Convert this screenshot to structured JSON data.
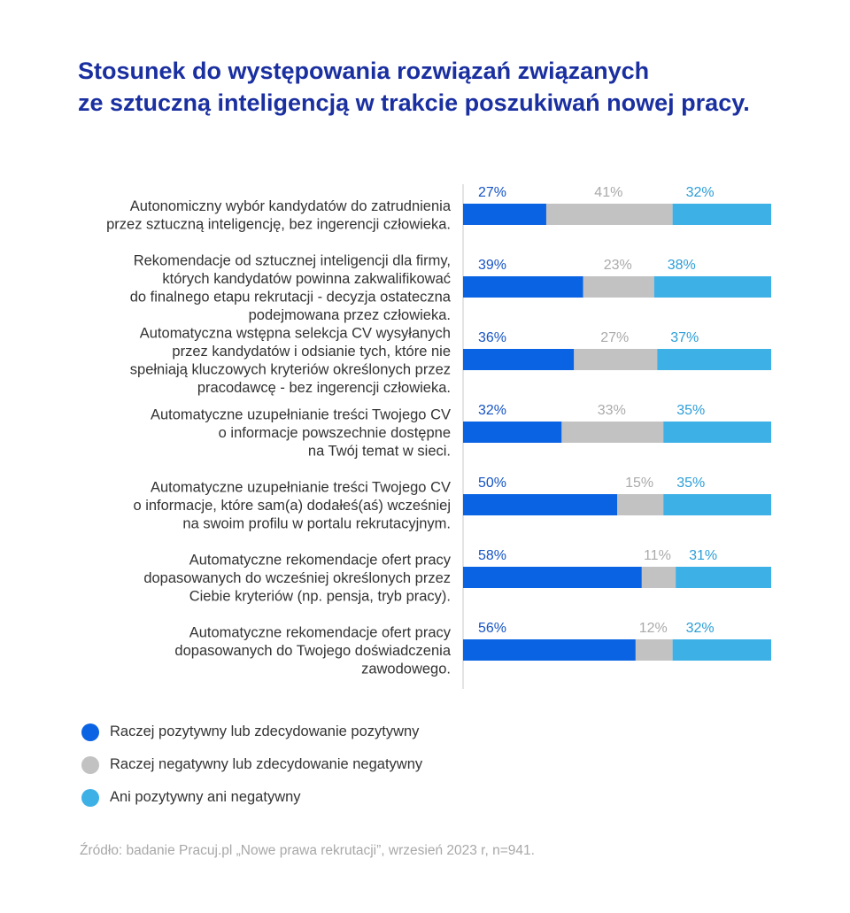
{
  "title": {
    "line1": "Stosunek do występowania rozwiązań związanych",
    "line2": "ze sztuczną inteligencją w trakcie poszukiwań nowej pracy."
  },
  "colors": {
    "positive": "#0a63e3",
    "negative": "#c2c2c2",
    "neutral": "#3db0e6",
    "title": "#1a2fa0",
    "positive_label": "#1553c4",
    "negative_label": "#aaaaaa",
    "neutral_label": "#2c9ed8"
  },
  "chart_data": {
    "type": "bar",
    "orientation": "horizontal",
    "stacked": true,
    "normalized_to": 100,
    "unit": "%",
    "categories": [
      [
        "Autonomiczny wybór kandydatów do zatrudnienia",
        "przez sztuczną inteligencję, bez ingerencji człowieka."
      ],
      [
        "Rekomendacje od sztucznej inteligencji dla firmy,",
        "których kandydatów powinna zakwalifikować",
        "do finalnego etapu rekrutacji - decyzja ostateczna",
        "podejmowana przez człowieka."
      ],
      [
        "Automatyczna wstępna selekcja CV wysyłanych",
        "przez kandydatów i odsianie tych, które nie",
        "spełniają kluczowych kryteriów określonych przez",
        "pracodawcę - bez ingerencji człowieka."
      ],
      [
        "Automatyczne uzupełnianie treści Twojego CV",
        "o informacje powszechnie dostępne",
        "na Twój temat w sieci."
      ],
      [
        "Automatyczne uzupełnianie treści Twojego CV",
        "o informacje, które sam(a) dodałeś(aś) wcześniej",
        "na swoim profilu w portalu rekrutacyjnym."
      ],
      [
        "Automatyczne rekomendacje ofert pracy",
        "dopasowanych do wcześniej określonych przez",
        "Ciebie kryteriów (np. pensja, tryb pracy)."
      ],
      [
        "Automatyczne rekomendacje ofert pracy",
        "dopasowanych do Twojego doświadczenia",
        "zawodowego."
      ]
    ],
    "series": [
      {
        "name": "Raczej pozytywny lub zdecydowanie pozytywny",
        "values": [
          27,
          39,
          36,
          32,
          50,
          58,
          56
        ],
        "labels": [
          "27%",
          "39%",
          "36%",
          "32%",
          "50%",
          "58%",
          "56%"
        ]
      },
      {
        "name": "Raczej negatywny lub zdecydowanie negatywny",
        "values": [
          41,
          23,
          27,
          33,
          15,
          11,
          12
        ],
        "labels": [
          "41%",
          "23%",
          "27%",
          "33%",
          "15%",
          "11%",
          "12%"
        ]
      },
      {
        "name": "Ani pozytywny ani negatywny",
        "values": [
          32,
          38,
          37,
          35,
          35,
          31,
          32
        ],
        "labels": [
          "32%",
          "38%",
          "37%",
          "35%",
          "35%",
          "31%",
          "32%"
        ]
      }
    ],
    "legend_position": "bottom-left"
  },
  "source": "Źródło: badanie Pracuj.pl „Nowe prawa rekrutacji”, wrzesień 2023 r, n=941."
}
